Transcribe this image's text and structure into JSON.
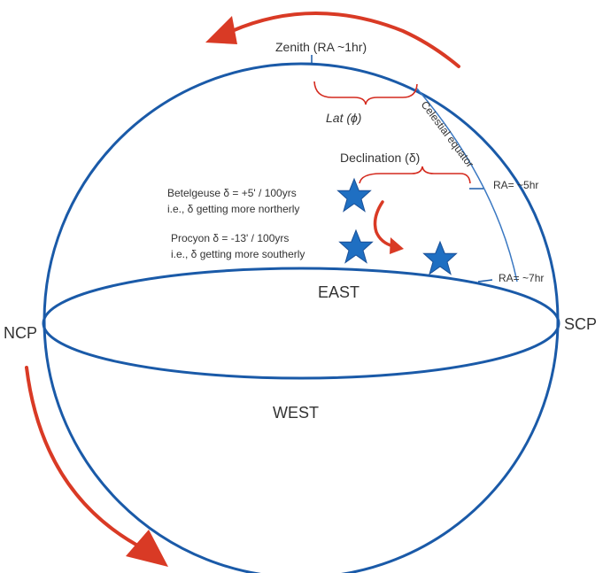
{
  "labels": {
    "zenith": "Zenith (RA ~1hr)",
    "lat": "Lat (ϕ)",
    "celestial_equator": "Celestial equator",
    "declination": "Declination (δ)",
    "ra_5hr": "RA= ~5hr",
    "ra_7hr": "RA= ~7hr",
    "east": "EAST",
    "west": "WEST",
    "ncp": "NCP",
    "scp": "SCP"
  },
  "stars": {
    "betelgeuse": {
      "line1": "Betelgeuse  δ  = +5' / 100yrs",
      "line2": "i.e., δ getting more northerly"
    },
    "procyon": {
      "line1": "Procyon  δ  = -13' / 100yrs",
      "line2": "i.e., δ getting more southerly"
    }
  },
  "colors": {
    "outline": "#1a5aa8",
    "equator": "#3a78c2",
    "bracket": "#d42a1e",
    "arrow": "#d93a25",
    "star_fill": "#1f6fc2",
    "star_stroke": "#1a4f96",
    "text": "#333333"
  }
}
